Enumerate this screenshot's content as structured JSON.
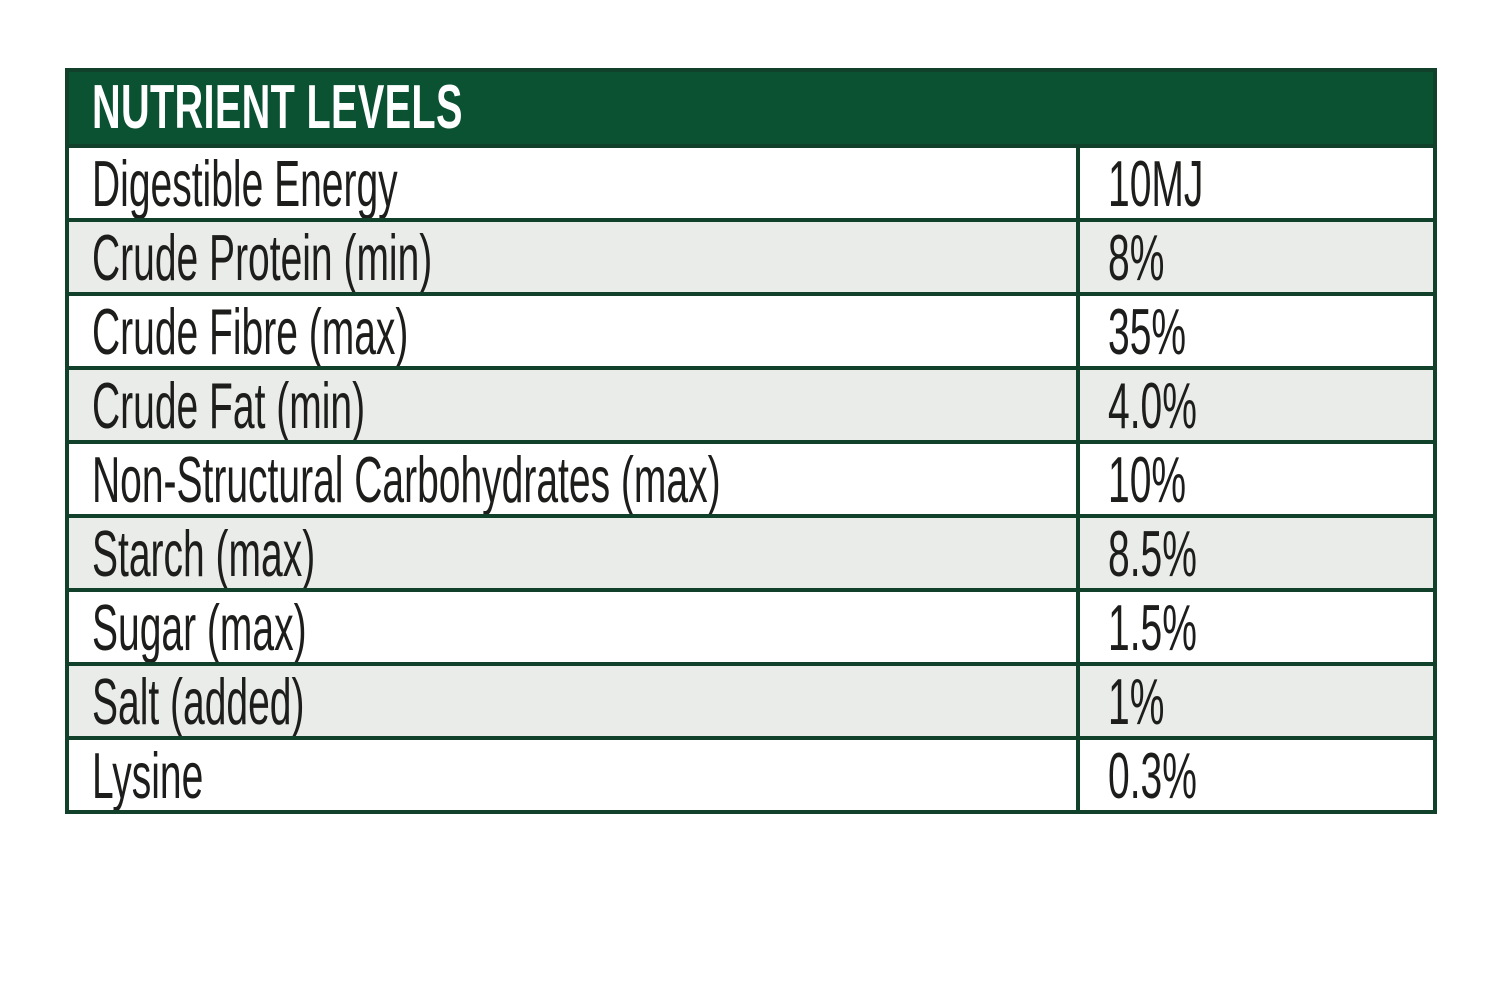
{
  "table": {
    "title": "NUTRIENT LEVELS",
    "rows": [
      {
        "label": "Digestible Energy",
        "value": "10MJ"
      },
      {
        "label": "Crude Protein (min)",
        "value": "8%"
      },
      {
        "label": "Crude Fibre (max)",
        "value": "35%"
      },
      {
        "label": "Crude Fat (min)",
        "value": "4.0%"
      },
      {
        "label": "Non-Structural Carbohydrates (max)",
        "value": "10%"
      },
      {
        "label": "Starch (max)",
        "value": "8.5%"
      },
      {
        "label": "Sugar (max)",
        "value": "1.5%"
      },
      {
        "label": "Salt (added)",
        "value": "1%"
      },
      {
        "label": "Lysine",
        "value": "0.3%"
      }
    ],
    "colors": {
      "header_background": "#0B5233",
      "border": "#11402B",
      "alt_row_background": "#E9ECE8",
      "text": "#1D1D1B",
      "header_text": "#FFFFFF"
    }
  }
}
